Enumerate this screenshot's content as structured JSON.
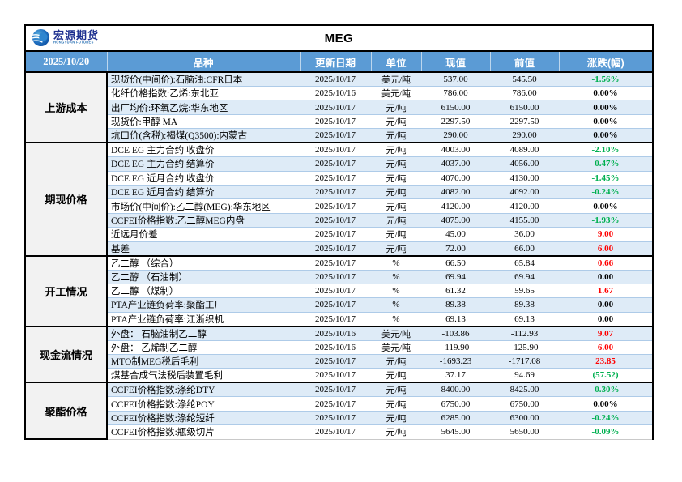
{
  "window": {
    "report_date": "2025/10/20",
    "title": "MEG",
    "logo_text": "宏源期货",
    "logo_subtext": "HONGYUAN FUTURES"
  },
  "colors": {
    "header_bg": "#5b9bd5",
    "alt_row_bg": "#deebf7",
    "group_cell_bg": "#f2f2f2",
    "change_up": "#ff0000",
    "change_down": "#00b050"
  },
  "table": {
    "columns": [
      "品种",
      "更新日期",
      "单位",
      "现值",
      "前值",
      "涨跌(幅)"
    ],
    "groups": [
      {
        "label": "上游成本",
        "rows": [
          {
            "name": "现货价(中间价):石脑油:CFR日本",
            "date": "2025/10/17",
            "unit": "美元/吨",
            "current": "537.00",
            "previous": "545.50",
            "change": "-1.56%",
            "trend": "down"
          },
          {
            "name": "化纤价格指数:乙烯:东北亚",
            "date": "2025/10/16",
            "unit": "美元/吨",
            "current": "786.00",
            "previous": "786.00",
            "change": "0.00%",
            "trend": "flat"
          },
          {
            "name": "出厂均价:环氧乙烷:华东地区",
            "date": "2025/10/17",
            "unit": "元/吨",
            "current": "6150.00",
            "previous": "6150.00",
            "change": "0.00%",
            "trend": "flat"
          },
          {
            "name": "现货价:甲醇 MA",
            "date": "2025/10/17",
            "unit": "元/吨",
            "current": "2297.50",
            "previous": "2297.50",
            "change": "0.00%",
            "trend": "flat"
          },
          {
            "name": "坑口价(含税):褐煤(Q3500):内蒙古",
            "date": "2025/10/17",
            "unit": "元/吨",
            "current": "290.00",
            "previous": "290.00",
            "change": "0.00%",
            "trend": "flat"
          }
        ]
      },
      {
        "label": "期现价格",
        "rows": [
          {
            "name": "DCE EG 主力合约 收盘价",
            "date": "2025/10/17",
            "unit": "元/吨",
            "current": "4003.00",
            "previous": "4089.00",
            "change": "-2.10%",
            "trend": "down"
          },
          {
            "name": "DCE EG 主力合约 结算价",
            "date": "2025/10/17",
            "unit": "元/吨",
            "current": "4037.00",
            "previous": "4056.00",
            "change": "-0.47%",
            "trend": "down"
          },
          {
            "name": "DCE EG 近月合约 收盘价",
            "date": "2025/10/17",
            "unit": "元/吨",
            "current": "4070.00",
            "previous": "4130.00",
            "change": "-1.45%",
            "trend": "down"
          },
          {
            "name": "DCE EG 近月合约 结算价",
            "date": "2025/10/17",
            "unit": "元/吨",
            "current": "4082.00",
            "previous": "4092.00",
            "change": "-0.24%",
            "trend": "down"
          },
          {
            "name": "市场价(中间价):乙二醇(MEG):华东地区",
            "date": "2025/10/17",
            "unit": "元/吨",
            "current": "4120.00",
            "previous": "4120.00",
            "change": "0.00%",
            "trend": "flat"
          },
          {
            "name": "CCFEI价格指数:乙二醇MEG内盘",
            "date": "2025/10/17",
            "unit": "元/吨",
            "current": "4075.00",
            "previous": "4155.00",
            "change": "-1.93%",
            "trend": "down"
          },
          {
            "name": "近远月价差",
            "date": "2025/10/17",
            "unit": "元/吨",
            "current": "45.00",
            "previous": "36.00",
            "change": "9.00",
            "trend": "up"
          },
          {
            "name": "基差",
            "date": "2025/10/17",
            "unit": "元/吨",
            "current": "72.00",
            "previous": "66.00",
            "change": "6.00",
            "trend": "up"
          }
        ]
      },
      {
        "label": "开工情况",
        "rows": [
          {
            "name": "乙二醇 （综合）",
            "date": "2025/10/17",
            "unit": "%",
            "current": "66.50",
            "previous": "65.84",
            "change": "0.66",
            "trend": "up"
          },
          {
            "name": "乙二醇 （石油制）",
            "date": "2025/10/17",
            "unit": "%",
            "current": "69.94",
            "previous": "69.94",
            "change": "0.00",
            "trend": "flat"
          },
          {
            "name": "乙二醇 （煤制）",
            "date": "2025/10/17",
            "unit": "%",
            "current": "61.32",
            "previous": "59.65",
            "change": "1.67",
            "trend": "up"
          },
          {
            "name": "PTA产业链负荷率:聚酯工厂",
            "date": "2025/10/17",
            "unit": "%",
            "current": "89.38",
            "previous": "89.38",
            "change": "0.00",
            "trend": "flat"
          },
          {
            "name": "PTA产业链负荷率:江浙织机",
            "date": "2025/10/17",
            "unit": "%",
            "current": "69.13",
            "previous": "69.13",
            "change": "0.00",
            "trend": "flat"
          }
        ]
      },
      {
        "label": "现金流情况",
        "rows": [
          {
            "name": "外盘： 石脑油制乙二醇",
            "date": "2025/10/16",
            "unit": "美元/吨",
            "current": "-103.86",
            "previous": "-112.93",
            "change": "9.07",
            "trend": "up"
          },
          {
            "name": "外盘： 乙烯制乙二醇",
            "date": "2025/10/16",
            "unit": "美元/吨",
            "current": "-119.90",
            "previous": "-125.90",
            "change": "6.00",
            "trend": "up"
          },
          {
            "name": "MTO制MEG税后毛利",
            "date": "2025/10/17",
            "unit": "元/吨",
            "current": "-1693.23",
            "previous": "-1717.08",
            "change": "23.85",
            "trend": "up"
          },
          {
            "name": "煤基合成气法税后装置毛利",
            "date": "2025/10/17",
            "unit": "元/吨",
            "current": "37.17",
            "previous": "94.69",
            "change": "(57.52)",
            "trend": "down"
          }
        ]
      },
      {
        "label": "聚酯价格",
        "rows": [
          {
            "name": "CCFEI价格指数:涤纶DTY",
            "date": "2025/10/17",
            "unit": "元/吨",
            "current": "8400.00",
            "previous": "8425.00",
            "change": "-0.30%",
            "trend": "down"
          },
          {
            "name": "CCFEI价格指数:涤纶POY",
            "date": "2025/10/17",
            "unit": "元/吨",
            "current": "6750.00",
            "previous": "6750.00",
            "change": "0.00%",
            "trend": "flat"
          },
          {
            "name": "CCFEI价格指数:涤纶短纤",
            "date": "2025/10/17",
            "unit": "元/吨",
            "current": "6285.00",
            "previous": "6300.00",
            "change": "-0.24%",
            "trend": "down"
          },
          {
            "name": "CCFEI价格指数:瓶级切片",
            "date": "2025/10/17",
            "unit": "元/吨",
            "current": "5645.00",
            "previous": "5650.00",
            "change": "-0.09%",
            "trend": "down"
          }
        ]
      }
    ]
  }
}
